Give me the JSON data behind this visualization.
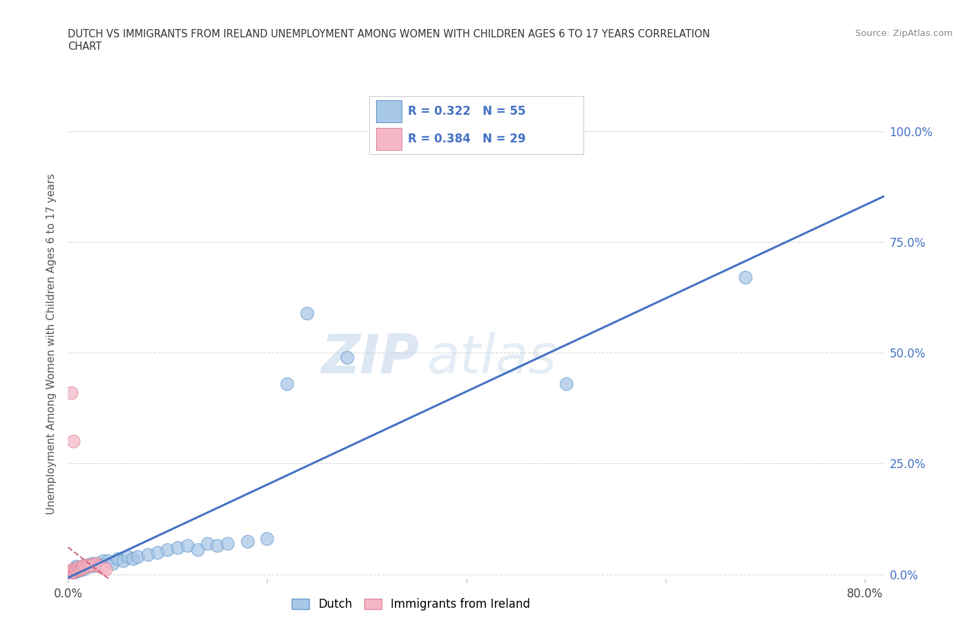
{
  "title_line1": "DUTCH VS IMMIGRANTS FROM IRELAND UNEMPLOYMENT AMONG WOMEN WITH CHILDREN AGES 6 TO 17 YEARS CORRELATION",
  "title_line2": "CHART",
  "source": "Source: ZipAtlas.com",
  "ylabel": "Unemployment Among Women with Children Ages 6 to 17 years",
  "dutch_R": "R = 0.322",
  "dutch_N": "N = 55",
  "ireland_R": "R = 0.384",
  "ireland_N": "N = 29",
  "dutch_color": "#a8c8e8",
  "dutch_edge": "#6699cc",
  "ireland_color": "#f5b8c8",
  "ireland_edge": "#dd8899",
  "trend_dutch_color": "#4472c4",
  "trend_ireland_color": "#cc6677",
  "watermark_color": "#d0dff0",
  "dutch_points": [
    [
      0.002,
      0.005
    ],
    [
      0.003,
      0.003
    ],
    [
      0.004,
      0.002
    ],
    [
      0.005,
      0.004
    ],
    [
      0.006,
      0.001
    ],
    [
      0.007,
      0.003
    ],
    [
      0.008,
      0.005
    ],
    [
      0.009,
      0.002
    ],
    [
      0.01,
      0.004
    ],
    [
      0.011,
      0.003
    ],
    [
      0.012,
      0.006
    ],
    [
      0.013,
      0.002
    ],
    [
      0.014,
      0.004
    ],
    [
      0.015,
      0.003
    ],
    [
      0.016,
      0.005
    ],
    [
      0.017,
      0.004
    ],
    [
      0.018,
      0.003
    ],
    [
      0.019,
      0.006
    ],
    [
      0.02,
      0.005
    ],
    [
      0.022,
      0.007
    ],
    [
      0.024,
      0.006
    ],
    [
      0.026,
      0.008
    ],
    [
      0.028,
      0.009
    ],
    [
      0.03,
      0.01
    ],
    [
      0.032,
      0.012
    ],
    [
      0.034,
      0.008
    ],
    [
      0.036,
      0.01
    ],
    [
      0.038,
      0.012
    ],
    [
      0.04,
      0.015
    ],
    [
      0.042,
      0.013
    ],
    [
      0.045,
      0.01
    ],
    [
      0.048,
      0.015
    ],
    [
      0.05,
      0.02
    ],
    [
      0.055,
      0.018
    ],
    [
      0.06,
      0.025
    ],
    [
      0.065,
      0.022
    ],
    [
      0.07,
      0.03
    ],
    [
      0.075,
      0.025
    ],
    [
      0.08,
      0.02
    ],
    [
      0.085,
      0.02
    ],
    [
      0.09,
      0.022
    ],
    [
      0.095,
      0.018
    ],
    [
      0.1,
      0.03
    ],
    [
      0.11,
      0.025
    ],
    [
      0.12,
      0.035
    ],
    [
      0.13,
      0.022
    ],
    [
      0.14,
      0.028
    ],
    [
      0.15,
      0.04
    ],
    [
      0.16,
      0.03
    ],
    [
      0.17,
      0.035
    ],
    [
      0.2,
      0.04
    ],
    [
      0.22,
      0.44
    ],
    [
      0.23,
      0.59
    ],
    [
      0.5,
      0.43
    ],
    [
      0.68,
      0.67
    ]
  ],
  "ireland_points": [
    [
      0.002,
      0.003
    ],
    [
      0.003,
      0.004
    ],
    [
      0.004,
      0.002
    ],
    [
      0.005,
      0.003
    ],
    [
      0.006,
      0.004
    ],
    [
      0.007,
      0.003
    ],
    [
      0.008,
      0.004
    ],
    [
      0.009,
      0.005
    ],
    [
      0.01,
      0.006
    ],
    [
      0.011,
      0.005
    ],
    [
      0.012,
      0.007
    ],
    [
      0.013,
      0.006
    ],
    [
      0.014,
      0.008
    ],
    [
      0.015,
      0.007
    ],
    [
      0.016,
      0.008
    ],
    [
      0.017,
      0.01
    ],
    [
      0.018,
      0.01
    ],
    [
      0.02,
      0.012
    ],
    [
      0.022,
      0.015
    ],
    [
      0.025,
      0.015
    ],
    [
      0.028,
      0.018
    ],
    [
      0.03,
      0.01
    ],
    [
      0.035,
      0.005
    ],
    [
      0.04,
      0.003
    ],
    [
      0.042,
      0.004
    ],
    [
      0.0,
      0.42
    ],
    [
      0.005,
      0.3
    ],
    [
      0.008,
      0.28
    ],
    [
      0.003,
      0.005
    ]
  ],
  "x_ticks": [
    0.0,
    0.2,
    0.4,
    0.6,
    0.8
  ],
  "x_tick_labels": [
    "0.0%",
    "",
    "",
    "",
    "80.0%"
  ],
  "y_ticks": [
    0.0,
    0.25,
    0.5,
    0.75,
    1.0
  ],
  "y_tick_labels": [
    "0.0%",
    "25.0%",
    "50.0%",
    "75.0%",
    "100.0%"
  ],
  "xlim": [
    0.0,
    0.82
  ],
  "ylim": [
    -0.01,
    1.05
  ]
}
